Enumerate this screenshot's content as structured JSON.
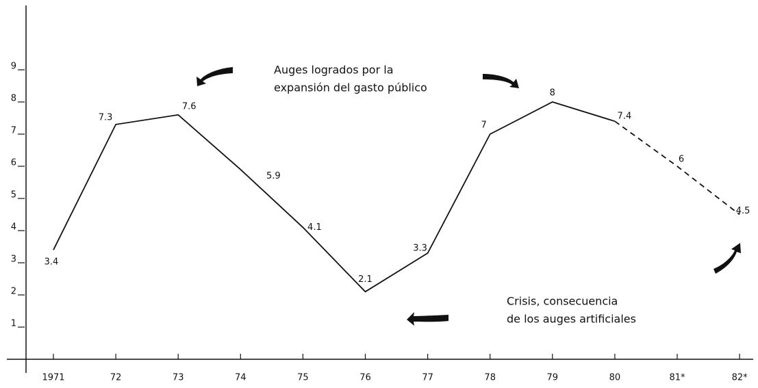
{
  "chart_data": {
    "type": "line",
    "categories": [
      "1971",
      "72",
      "73",
      "74",
      "75",
      "76",
      "77",
      "78",
      "79",
      "80",
      "81*",
      "82*"
    ],
    "values": [
      3.4,
      7.3,
      7.6,
      5.9,
      4.1,
      2.1,
      3.3,
      7,
      8,
      7.4,
      6,
      4.5
    ],
    "color": "#111111",
    "dash_from": 9,
    "ylim": [
      0,
      11
    ],
    "yticks": [
      1,
      2,
      3,
      4,
      5,
      6,
      7,
      8,
      9
    ],
    "grid": false,
    "annotations": [
      [
        "Auges logrados por la",
        "expansión del gasto público"
      ],
      [
        "Crisis, consecuencia",
        "de los auges artificiales"
      ]
    ]
  }
}
